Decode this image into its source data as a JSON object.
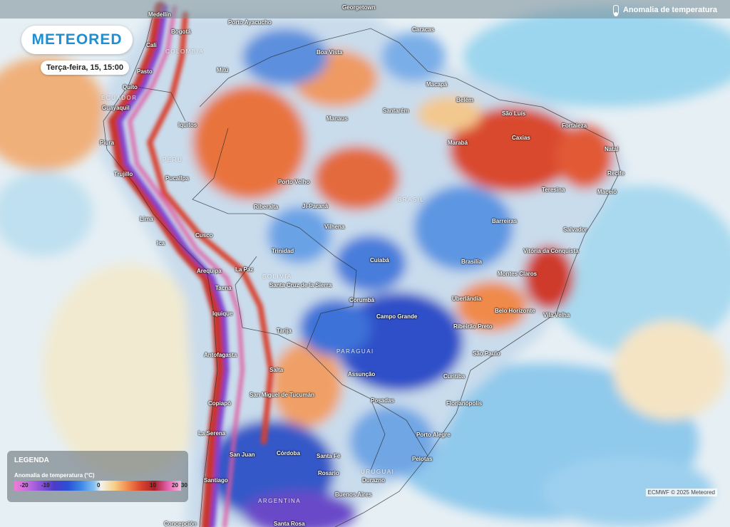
{
  "brand": {
    "logo_text": "METEORED"
  },
  "datetime": "Terça-feira, 15, 15:00",
  "layer_title": "Anomalia de temperatura",
  "legend": {
    "heading": "LEGENDA",
    "subtitle": "Anomalia de temperatura (°C)",
    "ticks": [
      "-20",
      "-10",
      "0",
      "10",
      "20",
      "30"
    ]
  },
  "credit": "ECMWF © 2025 Meteored",
  "countries": [
    "COLOMBIA",
    "ECUADOR",
    "PERU",
    "BOLIVIA",
    "BRASIL",
    "PARAGUAI",
    "URUGUAI",
    "ARGENTINA",
    "Georgetown"
  ],
  "cities": [
    "Medellín",
    "Bogotá",
    "Cali",
    "Pasto",
    "Quito",
    "Guayaquil",
    "Piura",
    "Trujillo",
    "Pucallpa",
    "Lima",
    "Ica",
    "Cusco",
    "Arequipa",
    "Tacna",
    "Iquique",
    "Antofagasta",
    "Copiapó",
    "La Serena",
    "Santiago",
    "Concepción",
    "Iquitos",
    "Mitú",
    "Porto Ayacucho",
    "Boa Vista",
    "Caracas",
    "Manaus",
    "Santarém",
    "Macapá",
    "Belém",
    "São Luís",
    "Fortaleza",
    "Natal",
    "Recife",
    "Maceió",
    "Caxias",
    "Marabá",
    "Teresina",
    "Porto Velho",
    "Riberalta",
    "Ji-Paraná",
    "Vilhena",
    "Trinidad",
    "La Paz",
    "Santa Cruz de la Sierra",
    "Cuiabá",
    "Barreiras",
    "Salvador",
    "Brasília",
    "Vitória da Conquista",
    "Montes Claros",
    "Uberlândia",
    "Campo Grande",
    "Belo Horizonte",
    "Vila Velha",
    "Corumbá",
    "Ribeirão Preto",
    "São Paulo",
    "Tarija",
    "Salta",
    "San Miguel de Tucumán",
    "Assunção",
    "Curitiba",
    "Posadas",
    "Florianópolis",
    "Porto Alegre",
    "Pelotas",
    "Córdoba",
    "Santa Fé",
    "Rosario",
    "Durazno",
    "Buenos Aires",
    "San Juan",
    "Santa Rosa"
  ],
  "colors": {
    "brand_blue": "#1f8fd1",
    "warm_anomaly": "#e05a36",
    "cold_anomaly": "#2f5fd0"
  }
}
